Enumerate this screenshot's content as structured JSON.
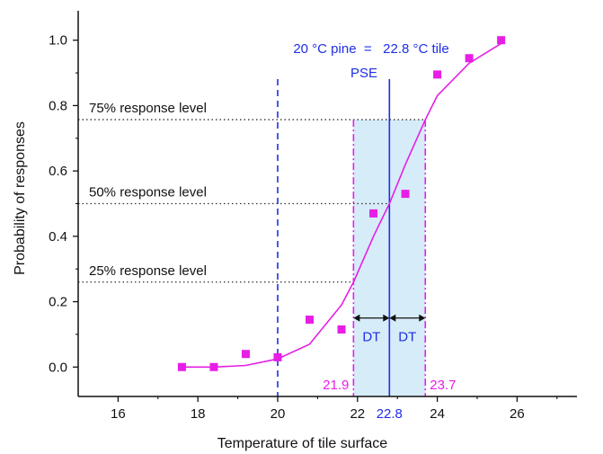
{
  "chart_data": {
    "type": "scatter",
    "xlabel": "Temperature of tile surface",
    "ylabel": "Probability of responses",
    "xlim": [
      15,
      27.5
    ],
    "ylim": [
      -0.09,
      1.09
    ],
    "x_ticks": [
      16,
      18,
      20,
      22,
      24,
      26
    ],
    "y_ticks": [
      0.0,
      0.2,
      0.4,
      0.6,
      0.8,
      1.0
    ],
    "x_tick_labels": [
      "16",
      "18",
      "20",
      "22",
      "24",
      "26"
    ],
    "y_tick_labels": [
      "0.0",
      "0.2",
      "0.4",
      "0.6",
      "0.8",
      "1.0"
    ],
    "grid": false,
    "series": [
      {
        "kind": "points",
        "color": "#e61ee6",
        "marker": "square",
        "x": [
          17.6,
          18.4,
          19.2,
          20.0,
          20.8,
          21.6,
          22.4,
          23.2,
          24.0,
          24.8,
          25.6
        ],
        "y": [
          0.0,
          0.0,
          0.04,
          0.03,
          0.145,
          0.115,
          0.47,
          0.53,
          0.895,
          0.945,
          1.0
        ]
      },
      {
        "kind": "fit-line",
        "color": "#e61ee6",
        "x": [
          17.6,
          18.4,
          19.2,
          20.0,
          20.8,
          21.6,
          21.9,
          22.4,
          22.8,
          23.2,
          23.7,
          24.0,
          24.8,
          25.6
        ],
        "y": [
          0.0,
          0.0,
          0.005,
          0.025,
          0.07,
          0.19,
          0.26,
          0.4,
          0.5,
          0.62,
          0.757,
          0.83,
          0.93,
          0.99
        ]
      }
    ],
    "reference_lines": {
      "response_levels": [
        {
          "y": 0.757,
          "label": "75% response level",
          "x_end": 23.7
        },
        {
          "y": 0.5,
          "label": "50% response level",
          "x_end": 22.8
        },
        {
          "y": 0.26,
          "label": "25% response level",
          "x_end": 21.9
        }
      ],
      "pine_line": {
        "x": 20.0,
        "color": "#1f2ee6"
      },
      "pse_line": {
        "x": 22.8,
        "color": "#1f2ee6"
      },
      "dt_bounds": [
        {
          "x": 21.9,
          "label": "21.9",
          "color": "#e61ee6"
        },
        {
          "x": 23.7,
          "label": "23.7",
          "color": "#e61ee6"
        }
      ],
      "shaded_band": {
        "x0": 21.9,
        "x1": 23.7,
        "color": "#d6ecf8"
      }
    },
    "annotations": {
      "title_line": "20 °C pine  =   22.8 °C tile",
      "pse_label": "PSE",
      "pse_value": "22.8",
      "dt_label": "DT",
      "dt_y": 0.15
    }
  }
}
